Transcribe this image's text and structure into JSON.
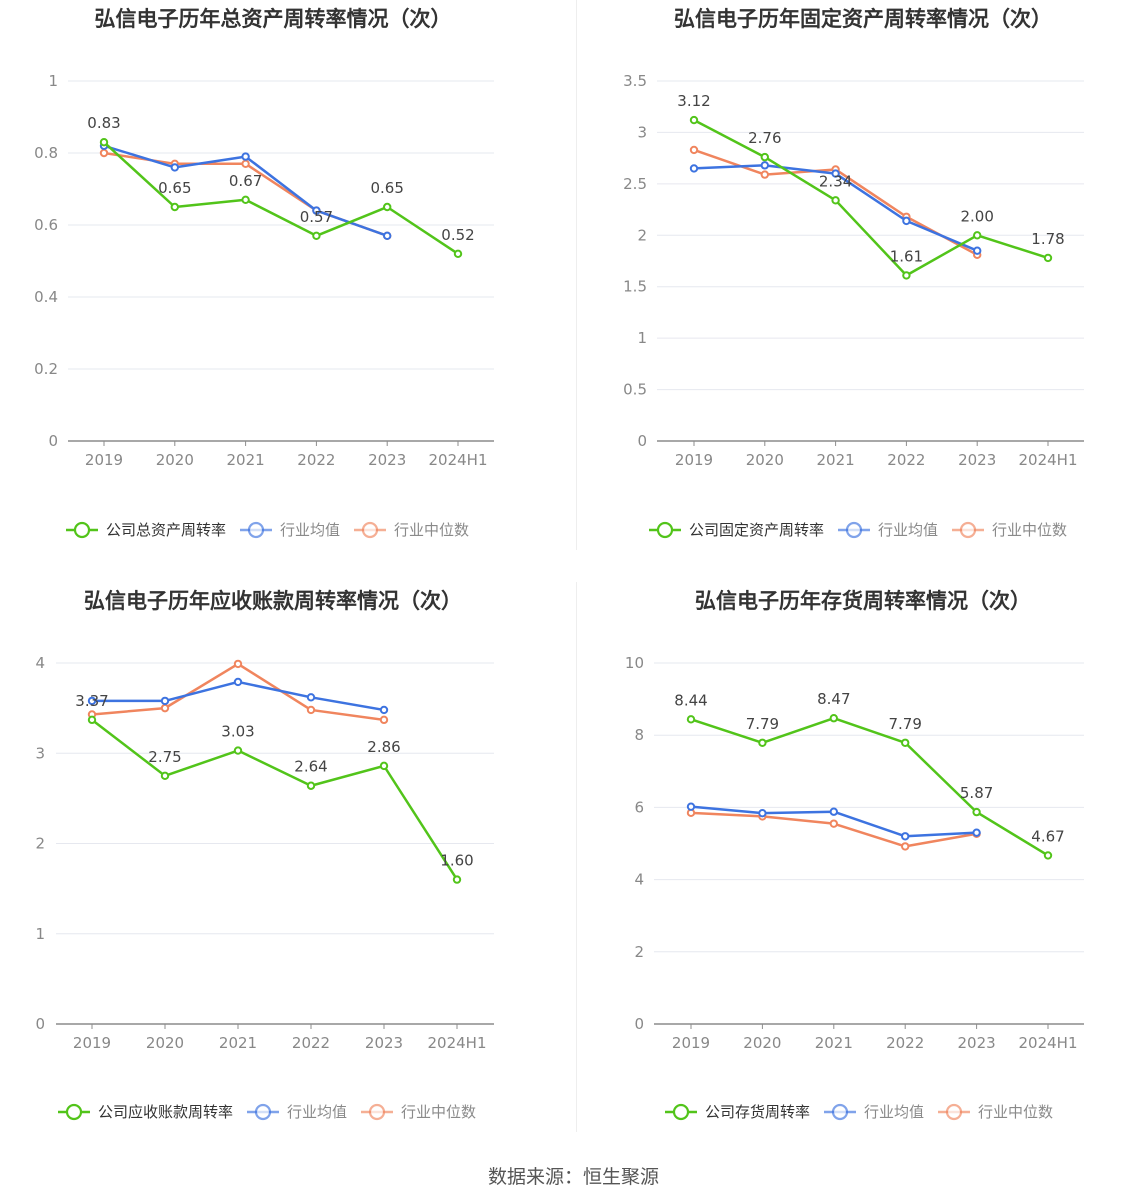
{
  "source": "数据来源：恒生聚源",
  "colors": {
    "company": "#52c41a",
    "average": "#3d73e0",
    "median": "#f0855e"
  },
  "chart_data": [
    {
      "type": "line",
      "title": "弘信电子历年总资产周转率情况（次）",
      "categories": [
        "2019",
        "2020",
        "2021",
        "2022",
        "2023",
        "2024H1"
      ],
      "ylim": [
        0,
        1
      ],
      "yticks": [
        0,
        0.2,
        0.4,
        0.6,
        0.8,
        1
      ],
      "ytick_labels": [
        "0",
        "0.2",
        "0.4",
        "0.6",
        "0.8",
        "1"
      ],
      "grid": true,
      "legend": "bottom",
      "series": [
        {
          "name": "公司总资产周转率",
          "values": [
            0.83,
            0.65,
            0.67,
            0.57,
            0.65,
            0.52
          ],
          "labels": [
            "0.83",
            "0.65",
            "0.67",
            "0.57",
            "0.65",
            "0.52"
          ]
        },
        {
          "name": "行业均值",
          "values": [
            0.82,
            0.76,
            0.79,
            0.64,
            0.57,
            null
          ]
        },
        {
          "name": "行业中位数",
          "values": [
            0.8,
            0.77,
            0.77,
            0.64,
            0.57,
            null
          ]
        }
      ]
    },
    {
      "type": "line",
      "title": "弘信电子历年固定资产周转率情况（次）",
      "categories": [
        "2019",
        "2020",
        "2021",
        "2022",
        "2023",
        "2024H1"
      ],
      "ylim": [
        0,
        3.5
      ],
      "yticks": [
        0,
        0.5,
        1,
        1.5,
        2,
        2.5,
        3,
        3.5
      ],
      "ytick_labels": [
        "0",
        "0.5",
        "1",
        "1.5",
        "2",
        "2.5",
        "3",
        "3.5"
      ],
      "grid": true,
      "legend": "bottom",
      "series": [
        {
          "name": "公司固定资产周转率",
          "values": [
            3.12,
            2.76,
            2.34,
            1.61,
            2.0,
            1.78
          ],
          "labels": [
            "3.12",
            "2.76",
            "2.34",
            "1.61",
            "2.00",
            "1.78"
          ]
        },
        {
          "name": "行业均值",
          "values": [
            2.65,
            2.68,
            2.6,
            2.14,
            1.85,
            null
          ]
        },
        {
          "name": "行业中位数",
          "values": [
            2.83,
            2.59,
            2.64,
            2.18,
            1.81,
            null
          ]
        }
      ]
    },
    {
      "type": "line",
      "title": "弘信电子历年应收账款周转率情况（次）",
      "categories": [
        "2019",
        "2020",
        "2021",
        "2022",
        "2023",
        "2024H1"
      ],
      "ylim": [
        0,
        4
      ],
      "yticks": [
        0,
        1,
        2,
        3,
        4
      ],
      "ytick_labels": [
        "0",
        "1",
        "2",
        "3",
        "4"
      ],
      "grid": true,
      "legend": "bottom",
      "series": [
        {
          "name": "公司应收账款周转率",
          "values": [
            3.37,
            2.75,
            3.03,
            2.64,
            2.86,
            1.6
          ],
          "labels": [
            "3.37",
            "2.75",
            "3.03",
            "2.64",
            "2.86",
            "1.60"
          ]
        },
        {
          "name": "行业均值",
          "values": [
            3.58,
            3.58,
            3.79,
            3.62,
            3.48,
            null
          ]
        },
        {
          "name": "行业中位数",
          "values": [
            3.43,
            3.5,
            3.99,
            3.48,
            3.37,
            null
          ]
        }
      ]
    },
    {
      "type": "line",
      "title": "弘信电子历年存货周转率情况（次）",
      "categories": [
        "2019",
        "2020",
        "2021",
        "2022",
        "2023",
        "2024H1"
      ],
      "ylim": [
        0,
        10
      ],
      "yticks": [
        0,
        2,
        4,
        6,
        8,
        10
      ],
      "ytick_labels": [
        "0",
        "2",
        "4",
        "6",
        "8",
        "10"
      ],
      "grid": true,
      "legend": "bottom",
      "series": [
        {
          "name": "公司存货周转率",
          "values": [
            8.44,
            7.79,
            8.47,
            7.79,
            5.87,
            4.67
          ],
          "labels": [
            "8.44",
            "7.79",
            "8.47",
            "7.79",
            "5.87",
            "4.67"
          ]
        },
        {
          "name": "行业均值",
          "values": [
            6.02,
            5.84,
            5.88,
            5.2,
            5.3,
            null
          ]
        },
        {
          "name": "行业中位数",
          "values": [
            5.85,
            5.75,
            5.55,
            4.92,
            5.27,
            null
          ]
        }
      ]
    }
  ]
}
